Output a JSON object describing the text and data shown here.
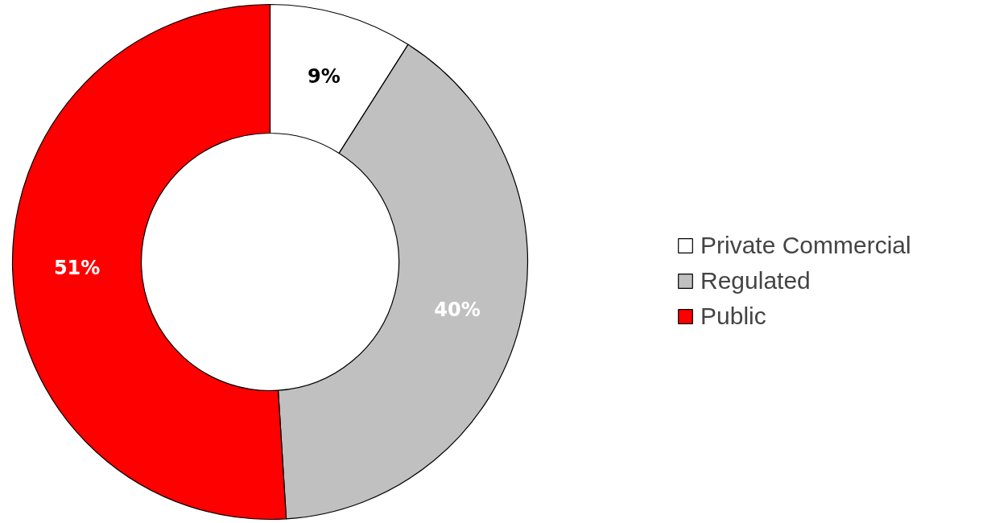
{
  "chart_data": {
    "type": "donut",
    "categories": [
      "Private Commercial",
      "Regulated",
      "Public"
    ],
    "values": [
      9,
      40,
      51
    ],
    "colors": [
      "#ffffff",
      "#c0c0c0",
      "#ff0000"
    ],
    "value_labels": [
      "9%",
      "40%",
      "51%"
    ],
    "legend": "right"
  }
}
